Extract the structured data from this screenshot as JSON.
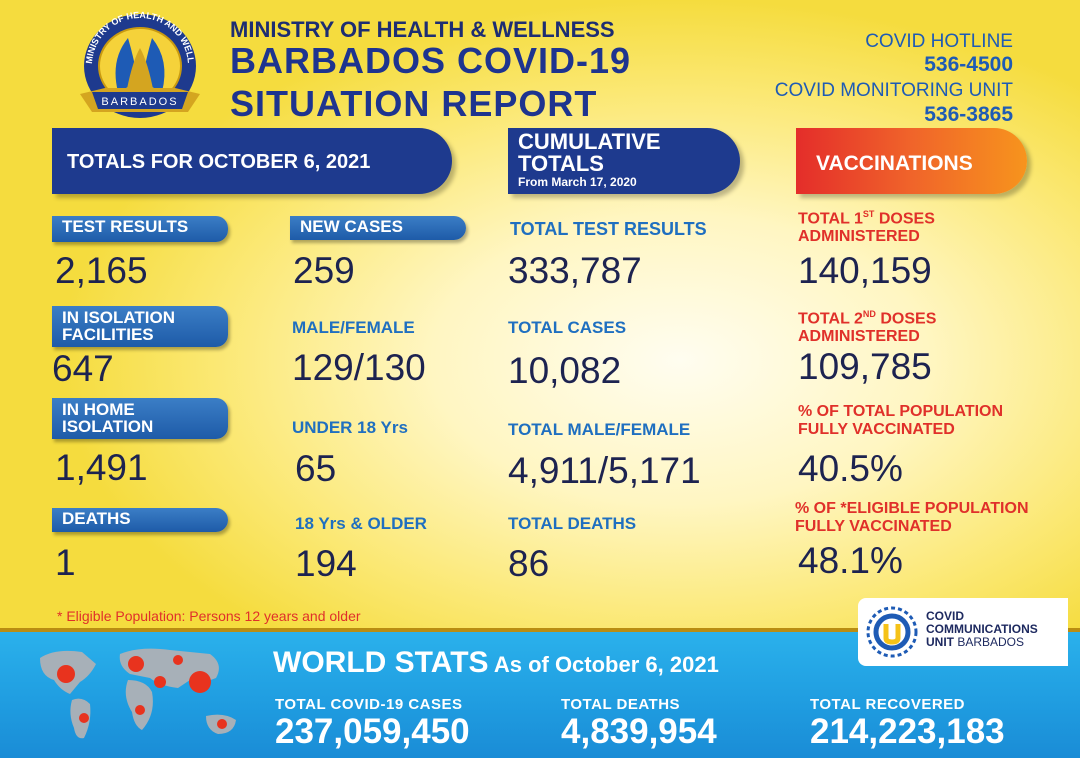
{
  "header": {
    "ministry": "MINISTRY OF HEALTH & WELLNESS",
    "title_line1": "BARBADOS COVID-19",
    "title_line2": "SITUATION REPORT",
    "hotline_label": "COVID HOTLINE",
    "hotline_number": "536-4500",
    "monitoring_label": "COVID MONITORING UNIT",
    "monitoring_number": "536-3865",
    "logo_text_top": "MINISTRY OF HEALTH AND WELLNESS",
    "logo_text_bottom": "BARBADOS"
  },
  "banners": {
    "totals": "TOTALS FOR OCTOBER 6, 2021",
    "cumulative_line1": "CUMULATIVE",
    "cumulative_line2": "TOTALS",
    "cumulative_sub": "From March 17, 2020",
    "vaccinations": "VACCINATIONS"
  },
  "daily": {
    "test_results_label": "TEST RESULTS",
    "test_results": "2,165",
    "isolation_facilities_label_1": "IN ISOLATION",
    "isolation_facilities_label_2": "FACILITIES",
    "isolation_facilities": "647",
    "home_isolation_label_1": "IN HOME",
    "home_isolation_label_2": "ISOLATION",
    "home_isolation": "1,491",
    "deaths_label": "DEATHS",
    "deaths": "1",
    "new_cases_label": "NEW CASES",
    "new_cases": "259",
    "male_female_label": "MALE/FEMALE",
    "male_female": "129/130",
    "under_18_label": "UNDER  18 Yrs",
    "under_18": "65",
    "over_18_label": "18 Yrs & OLDER",
    "over_18": "194"
  },
  "cumulative": {
    "total_tests_label": "TOTAL TEST RESULTS",
    "total_tests": "333,787",
    "total_cases_label": "TOTAL CASES",
    "total_cases": "10,082",
    "total_male_female_label": "TOTAL MALE/FEMALE",
    "total_male_female": "4,911/5,171",
    "total_deaths_label": "TOTAL DEATHS",
    "total_deaths": "86"
  },
  "vaccinations": {
    "first_doses_label_a": "TOTAL 1",
    "first_doses_label_sup": "ST",
    "first_doses_label_b": " DOSES",
    "first_doses_label_2": "ADMINISTERED",
    "first_doses": "140,159",
    "second_doses_label_a": "TOTAL 2",
    "second_doses_label_sup": "ND",
    "second_doses_label_b": " DOSES",
    "second_doses_label_2": "ADMINISTERED",
    "second_doses": "109,785",
    "pct_total_label_1": "% OF TOTAL POPULATION",
    "pct_total_label_2": "FULLY VACCINATED",
    "pct_total": "40.5%",
    "pct_eligible_label_1": "% OF *ELIGIBLE POPULATION",
    "pct_eligible_label_2": "FULLY VACCINATED",
    "pct_eligible": "48.1%"
  },
  "footnote": "* Eligible Population: Persons 12 years and older",
  "ccu": {
    "line1": "COVID",
    "line2": "COMMUNICATIONS",
    "line3a": "UNIT",
    "line3b": " BARBADOS"
  },
  "world": {
    "title": "WORLD STATS",
    "as_of": " As of October 6, 2021",
    "cases_label": "TOTAL  COVID-19  CASES",
    "cases": "237,059,450",
    "deaths_label": "TOTAL  DEATHS",
    "deaths": "4,839,954",
    "recovered_label": "TOTAL  RECOVERED",
    "recovered": "214,223,183"
  },
  "colors": {
    "navy": "#1e3a8e",
    "accent_blue": "#1f6fc0",
    "red": "#e0302a",
    "orange": "#f7941d",
    "footer_blue": "#1f9ce0"
  }
}
